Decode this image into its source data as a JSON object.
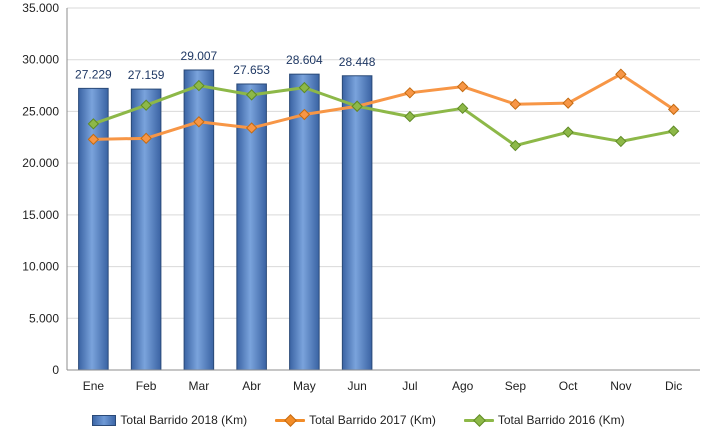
{
  "chart_data": {
    "type": "bar",
    "categories": [
      "Ene",
      "Feb",
      "Mar",
      "Abr",
      "May",
      "Jun",
      "Jul",
      "Ago",
      "Sep",
      "Oct",
      "Nov",
      "Dic"
    ],
    "ylim": [
      0,
      35000
    ],
    "yticks": [
      0,
      5000,
      10000,
      15000,
      20000,
      25000,
      30000,
      35000
    ],
    "ytick_labels": [
      "0",
      "5.000",
      "10.000",
      "15.000",
      "20.000",
      "25.000",
      "30.000",
      "35.000"
    ],
    "grid": true,
    "legend_position": "bottom",
    "series": [
      {
        "name": "Total Barrido 2018 (Km)",
        "kind": "bar",
        "color": "#4f81bd",
        "values": [
          27229,
          27159,
          29007,
          27653,
          28604,
          28448,
          null,
          null,
          null,
          null,
          null,
          null
        ],
        "data_labels": [
          "27.229",
          "27.159",
          "29.007",
          "27.653",
          "28.604",
          "28.448"
        ]
      },
      {
        "name": "Total Barrido 2017 (Km)",
        "kind": "line",
        "color": "#f79646",
        "values": [
          22300,
          22400,
          24000,
          23400,
          24700,
          25500,
          26800,
          27400,
          25700,
          25800,
          28600,
          25200
        ]
      },
      {
        "name": "Total Barrido 2016 (Km)",
        "kind": "line",
        "color": "#8db848",
        "values": [
          23800,
          25600,
          27500,
          26600,
          27300,
          25500,
          24500,
          25300,
          21700,
          23000,
          22100,
          23100
        ]
      }
    ]
  }
}
